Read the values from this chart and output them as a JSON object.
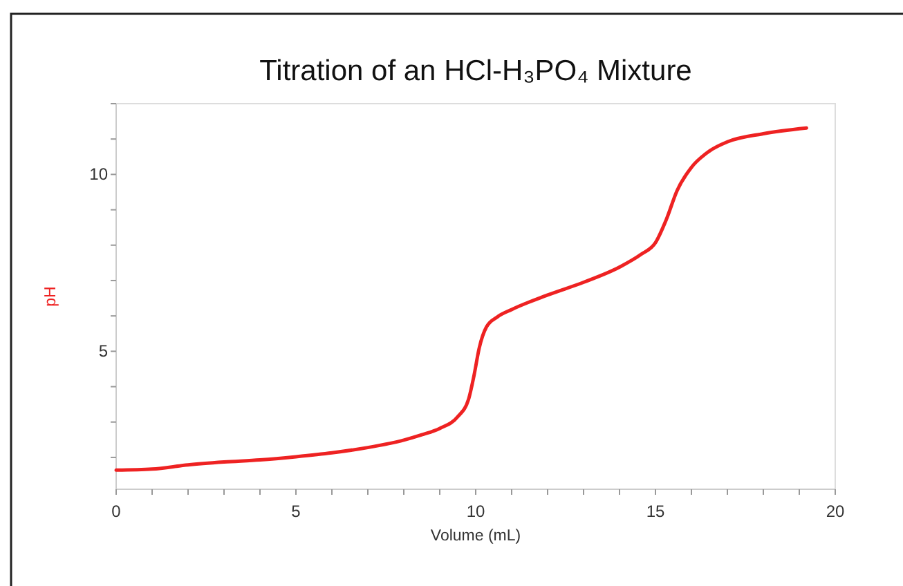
{
  "chart_data": {
    "type": "line",
    "title": "Titration of an HCl-H₃PO₄ Mixture",
    "xlabel": "Volume (mL)",
    "ylabel": "pH",
    "xlim": [
      0,
      20
    ],
    "xticks": [
      0,
      {
        "value": 1,
        "label": null
      },
      {
        "value": 2,
        "label": null
      },
      {
        "value": 3,
        "label": null
      },
      {
        "value": 4,
        "label": null
      },
      5,
      {
        "value": 6,
        "label": null
      },
      {
        "value": 7,
        "label": null
      },
      {
        "value": 8,
        "label": null
      },
      {
        "value": 9,
        "label": null
      },
      10,
      {
        "value": 11,
        "label": null
      },
      {
        "value": 12,
        "label": null
      },
      {
        "value": 13,
        "label": null
      },
      {
        "value": 14,
        "label": null
      },
      15,
      {
        "value": 16,
        "label": null
      },
      {
        "value": 17,
        "label": null
      },
      {
        "value": 18,
        "label": null
      },
      {
        "value": 19,
        "label": null
      },
      20
    ],
    "ylim": [
      1.1,
      12
    ],
    "yticks": [
      {
        "value": 2,
        "label": null
      },
      {
        "value": 3,
        "label": null
      },
      {
        "value": 4,
        "label": null
      },
      5,
      {
        "value": 6,
        "label": null
      },
      {
        "value": 7,
        "label": null
      },
      {
        "value": 8,
        "label": null
      },
      {
        "value": 9,
        "label": null
      },
      10,
      {
        "value": 11,
        "label": null
      },
      {
        "value": 12,
        "label": null
      }
    ],
    "grid": false,
    "marker": "none",
    "line_style": "solid",
    "series": [
      {
        "color": "#ee2222",
        "x": [
          0,
          1,
          2,
          3,
          4,
          5,
          6,
          7,
          8,
          8.5,
          9,
          9.5,
          9.8,
          9.95,
          10.1,
          10.3,
          10.6,
          11,
          12,
          13,
          14,
          14.6,
          15,
          15.3,
          15.6,
          16,
          16.5,
          17,
          18,
          19.2
        ],
        "values": [
          1.64,
          1.67,
          1.79,
          1.87,
          1.93,
          2.02,
          2.13,
          2.28,
          2.49,
          2.64,
          2.82,
          3.15,
          3.64,
          4.3,
          5.1,
          5.69,
          5.97,
          6.18,
          6.59,
          6.95,
          7.38,
          7.74,
          8.07,
          8.72,
          9.54,
          10.2,
          10.66,
          10.92,
          11.15,
          11.31
        ]
      }
    ]
  }
}
